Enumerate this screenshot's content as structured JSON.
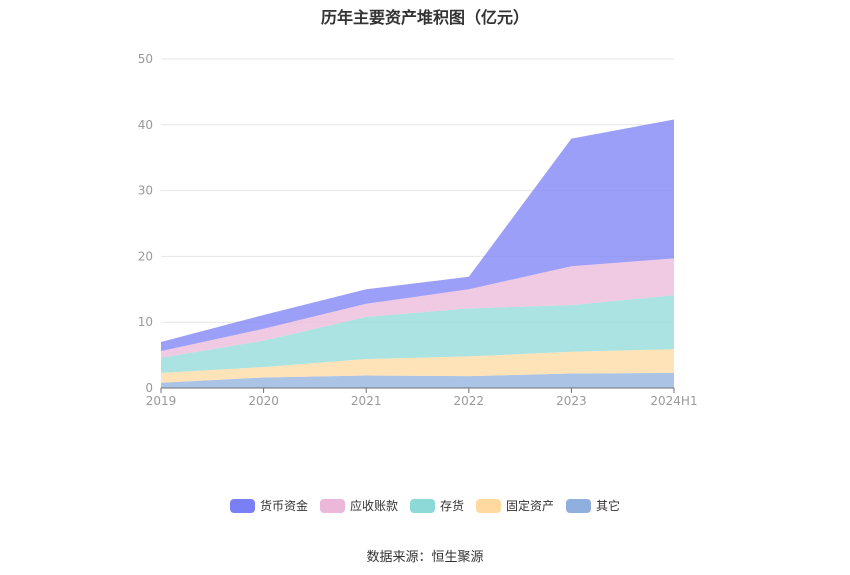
{
  "chart_data": {
    "type": "area",
    "title": "历年主要资产堆积图（亿元）",
    "categories": [
      "2019",
      "2020",
      "2021",
      "2022",
      "2023",
      "2024H1"
    ],
    "y_ticks": [
      "0",
      "10",
      "20",
      "30",
      "40",
      "50"
    ],
    "ylim": [
      0,
      50
    ],
    "stacked": true,
    "grid": true,
    "legend_position": "bottom",
    "series": [
      {
        "name": "其它",
        "color": "#8fb0de",
        "values": [
          0.8,
          1.6,
          1.9,
          1.8,
          2.2,
          2.3
        ]
      },
      {
        "name": "固定资产",
        "color": "#ffd9a0",
        "values": [
          1.5,
          1.6,
          2.5,
          3.0,
          3.3,
          3.6
        ]
      },
      {
        "name": "存货",
        "color": "#8dd9d8",
        "values": [
          2.3,
          4.0,
          6.4,
          7.3,
          7.1,
          8.2
        ]
      },
      {
        "name": "应收账款",
        "color": "#ebb8da",
        "values": [
          1.0,
          1.8,
          2.0,
          2.9,
          5.9,
          5.6
        ]
      },
      {
        "name": "货币资金",
        "color": "#7b7ff5",
        "values": [
          1.4,
          2.1,
          2.2,
          1.9,
          19.4,
          21.1
        ]
      }
    ]
  },
  "source_text": "数据来源：恒生聚源"
}
